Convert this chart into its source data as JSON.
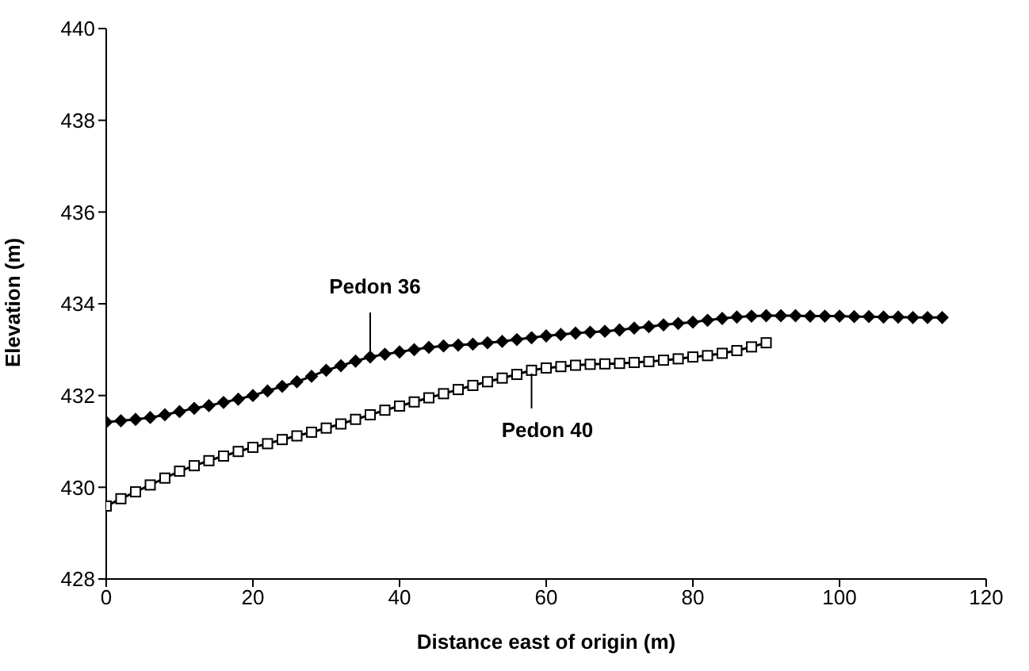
{
  "chart_data": {
    "type": "line",
    "xlabel": "Distance east of origin (m)",
    "ylabel": "Elevation (m)",
    "xlim": [
      0,
      120
    ],
    "xticks": [
      0,
      20,
      40,
      60,
      80,
      100,
      120
    ],
    "ylim": [
      428,
      440
    ],
    "yticks": [
      428,
      430,
      432,
      434,
      436,
      438,
      440
    ],
    "series": [
      {
        "name": "Pedon 36",
        "color": "#000000",
        "marker": "diamond",
        "x": [
          0,
          2,
          4,
          6,
          8,
          10,
          12,
          14,
          16,
          18,
          20,
          22,
          24,
          26,
          28,
          30,
          32,
          34,
          36,
          38,
          40,
          42,
          44,
          46,
          48,
          50,
          52,
          54,
          56,
          58,
          60,
          62,
          64,
          66,
          68,
          70,
          72,
          74,
          76,
          78,
          80,
          82,
          84,
          86,
          88,
          90,
          92,
          94,
          96,
          98,
          100,
          102,
          104,
          106,
          108,
          110,
          112,
          114
        ],
        "values": [
          431.42,
          431.45,
          431.48,
          431.52,
          431.58,
          431.65,
          431.72,
          431.78,
          431.85,
          431.92,
          432.0,
          432.1,
          432.2,
          432.3,
          432.42,
          432.55,
          432.65,
          432.75,
          432.84,
          432.9,
          432.95,
          433.0,
          433.05,
          433.08,
          433.1,
          433.12,
          433.15,
          433.18,
          433.22,
          433.26,
          433.3,
          433.33,
          433.36,
          433.38,
          433.4,
          433.43,
          433.47,
          433.5,
          433.54,
          433.57,
          433.6,
          433.64,
          433.68,
          433.71,
          433.73,
          433.74,
          433.74,
          433.74,
          433.73,
          433.73,
          433.73,
          433.72,
          433.72,
          433.71,
          433.71,
          433.7,
          433.7,
          433.7
        ]
      },
      {
        "name": "Pedon 40",
        "color": "#000000",
        "marker": "square",
        "x": [
          0,
          2,
          4,
          6,
          8,
          10,
          12,
          14,
          16,
          18,
          20,
          22,
          24,
          26,
          28,
          30,
          32,
          34,
          36,
          38,
          40,
          42,
          44,
          46,
          48,
          50,
          52,
          54,
          56,
          58,
          60,
          62,
          64,
          66,
          68,
          70,
          72,
          74,
          76,
          78,
          80,
          82,
          84,
          86,
          88,
          90
        ],
        "values": [
          429.59,
          429.75,
          429.9,
          430.05,
          430.2,
          430.35,
          430.47,
          430.58,
          430.68,
          430.78,
          430.87,
          430.95,
          431.04,
          431.12,
          431.2,
          431.29,
          431.38,
          431.48,
          431.58,
          431.68,
          431.77,
          431.86,
          431.95,
          432.04,
          432.13,
          432.22,
          432.3,
          432.38,
          432.46,
          432.55,
          432.6,
          432.63,
          432.66,
          432.68,
          432.69,
          432.7,
          432.72,
          432.74,
          432.77,
          432.8,
          432.84,
          432.87,
          432.92,
          432.98,
          433.06,
          433.15
        ]
      }
    ]
  }
}
